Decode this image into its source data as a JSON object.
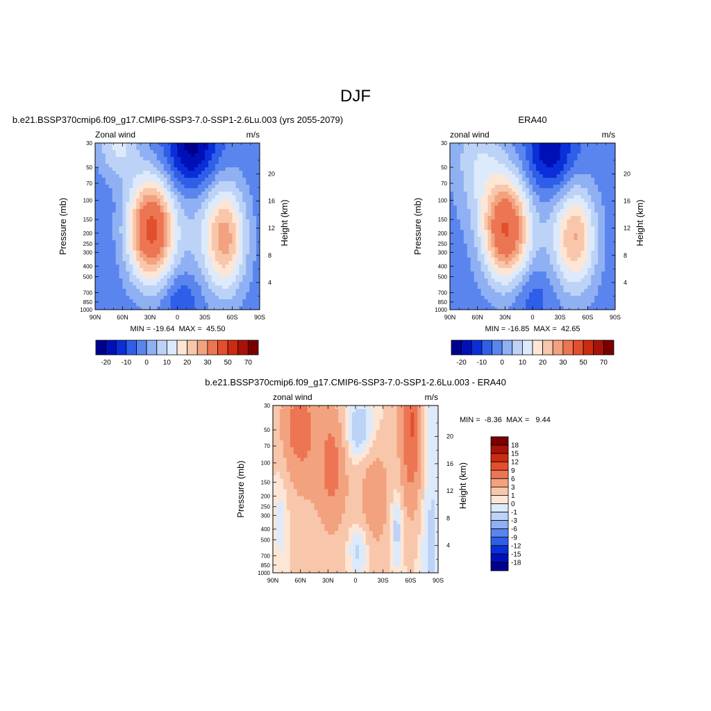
{
  "figure": {
    "title": "DJF"
  },
  "colors": {
    "panel_palette": [
      "#00008f",
      "#0010b8",
      "#0a2fd8",
      "#2f5fe8",
      "#5a85ee",
      "#8fb0f3",
      "#bcd3f7",
      "#ddeafb",
      "#fde6d6",
      "#f8c7ab",
      "#f3a27f",
      "#ec7553",
      "#e34f2c",
      "#cd2a12",
      "#a71306",
      "#7a0000"
    ],
    "diff_palette": [
      "#00008f",
      "#0010b8",
      "#0a2fd8",
      "#2f5fe8",
      "#5a85ee",
      "#8fb0f3",
      "#bcd3f7",
      "#ddeafb",
      "#fde6d6",
      "#f8c7ab",
      "#f3a27f",
      "#ec7553",
      "#e34f2c",
      "#cd2a12",
      "#a71306",
      "#7a0000"
    ]
  },
  "chart_data": [
    {
      "type": "heatmap",
      "id": "model",
      "title": "b.e21.BSSP370cmip6.f09_g17.CMIP6-SSP3-7.0-SSP1-2.6Lu.003 (yrs 2055-2079)",
      "left_label": "Zonal wind",
      "right_label": "m/s",
      "ylabel": "Pressure (mb)",
      "y2label": "Height (km)",
      "xticks": [
        "90N",
        "60N",
        "30N",
        "0",
        "30S",
        "60S",
        "90S"
      ],
      "yticks": [
        "30",
        "50",
        "70",
        "100",
        "150",
        "200",
        "250",
        "300",
        "400",
        "500",
        "700",
        "850",
        "1000"
      ],
      "y2ticks": [
        "20",
        "16",
        "12",
        "8",
        "4"
      ],
      "stats": "MIN = -19.64  MAX =  45.50",
      "colorbar_labels": [
        "-20",
        "-10",
        "0",
        "10",
        "20",
        "30",
        "50",
        "70"
      ],
      "min": -19.64,
      "max": 45.5
    },
    {
      "type": "heatmap",
      "id": "obs",
      "title": "ERA40",
      "left_label": "zonal wind",
      "right_label": "m/s",
      "ylabel": "Pressure (mb)",
      "y2label": "Height (km)",
      "xticks": [
        "90N",
        "60N",
        "30N",
        "0",
        "30S",
        "60S",
        "90S"
      ],
      "yticks": [
        "30",
        "50",
        "70",
        "100",
        "150",
        "200",
        "250",
        "300",
        "400",
        "500",
        "700",
        "850",
        "1000"
      ],
      "y2ticks": [
        "20",
        "16",
        "12",
        "8",
        "4"
      ],
      "stats": "MIN = -16.85  MAX =  42.65",
      "colorbar_labels": [
        "-20",
        "-10",
        "0",
        "10",
        "20",
        "30",
        "50",
        "70"
      ],
      "min": -16.85,
      "max": 42.65
    },
    {
      "type": "heatmap",
      "id": "diff",
      "title": "b.e21.BSSP370cmip6.f09_g17.CMIP6-SSP3-7.0-SSP1-2.6Lu.003 - ERA40",
      "left_label": "zonal wind",
      "right_label": "m/s",
      "ylabel": "Pressure (mb)",
      "y2label": "Height (km)",
      "xticks": [
        "90N",
        "60N",
        "30N",
        "0",
        "30S",
        "60S",
        "90S"
      ],
      "yticks": [
        "30",
        "50",
        "70",
        "100",
        "150",
        "200",
        "250",
        "300",
        "400",
        "500",
        "700",
        "850",
        "1000"
      ],
      "y2ticks": [
        "20",
        "16",
        "12",
        "8",
        "4"
      ],
      "stats": "MIN =  -8.36  MAX =   9.44",
      "colorbar_labels": [
        "18",
        "15",
        "12",
        "9",
        "6",
        "3",
        "1",
        "0",
        "-1",
        "-3",
        "-6",
        "-9",
        "-12",
        "-15",
        "-18"
      ],
      "min": -8.36,
      "max": 9.44
    }
  ]
}
